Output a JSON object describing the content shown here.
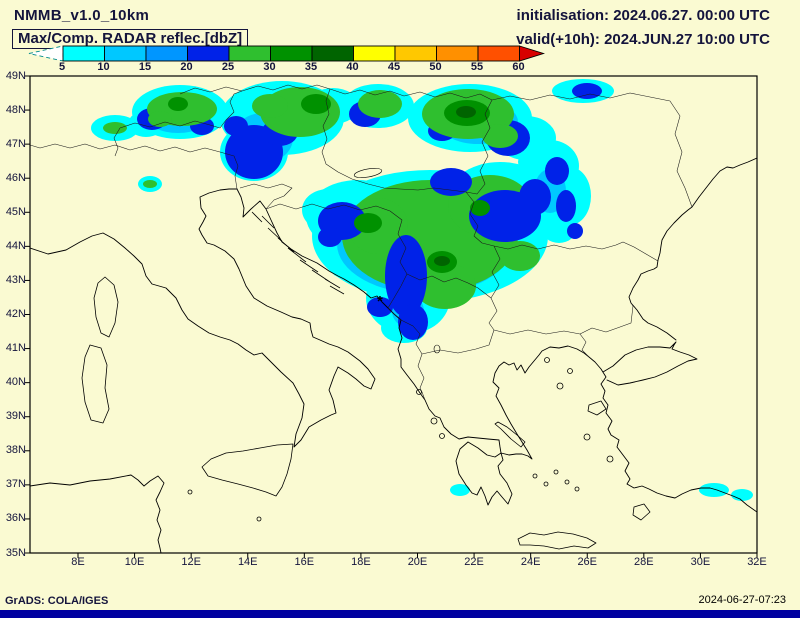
{
  "header": {
    "model_title": "NMMB_v1.0_10km",
    "init_label": "initialisation: 2024.06.27. 00:00 UTC",
    "field_label": "Max/Comp. RADAR reflec.[dbZ]",
    "valid_label": "valid(+10h): 2024.JUN.27 10:00 UTC"
  },
  "colorbar": {
    "units": "dbZ",
    "tick_labels": [
      "5",
      "10",
      "15",
      "20",
      "25",
      "30",
      "35",
      "40",
      "45",
      "50",
      "55",
      "60"
    ],
    "segments": [
      {
        "type": "arrow-left",
        "color": "#ffffff",
        "dashed": true
      },
      {
        "type": "box",
        "color": "#00ffff"
      },
      {
        "type": "box",
        "color": "#00c8ff"
      },
      {
        "type": "box",
        "color": "#0096ff"
      },
      {
        "type": "box",
        "color": "#0022e8"
      },
      {
        "type": "box",
        "color": "#2fbf2f"
      },
      {
        "type": "box",
        "color": "#009100"
      },
      {
        "type": "box",
        "color": "#006400"
      },
      {
        "type": "box",
        "color": "#ffff00"
      },
      {
        "type": "box",
        "color": "#ffc800"
      },
      {
        "type": "box",
        "color": "#ff9000"
      },
      {
        "type": "box",
        "color": "#ff5000"
      },
      {
        "type": "arrow-right",
        "color": "#d80000"
      }
    ]
  },
  "map": {
    "lat_labels": [
      "49N",
      "48N",
      "47N",
      "46N",
      "45N",
      "44N",
      "43N",
      "42N",
      "41N",
      "40N",
      "39N",
      "38N",
      "37N",
      "36N",
      "35N"
    ],
    "lon_labels": [
      "8E",
      "10E",
      "12E",
      "14E",
      "16E",
      "18E",
      "20E",
      "22E",
      "24E",
      "26E",
      "28E",
      "30E",
      "32E"
    ],
    "marker_symbol": "*"
  },
  "footer": {
    "grads_credit": "GrADS: COLA/IGES",
    "timestamp": "2024-06-27-07:23"
  }
}
